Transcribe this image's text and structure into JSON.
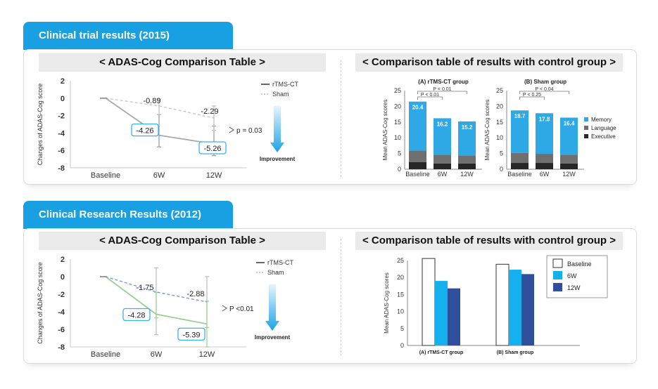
{
  "sections": [
    {
      "tab_title": "Clinical trial results (2015)",
      "left_header": "< ADAS-Cog Comparison Table >",
      "right_header": "< Comparison table of results with control group >"
    },
    {
      "tab_title": "Clinical Research Results (2012)",
      "left_header": "< ADAS-Cog Comparison Table >",
      "right_header": "< Comparison table of results with control group >"
    }
  ],
  "colors": {
    "accent": "#18a0e3",
    "memory": "#2fa8e6",
    "language": "#6f6f6f",
    "executive": "#262626",
    "rtms_line_2015": "#a9a9a9",
    "rtms_line_2012": "#9ccf91",
    "sham_line_2012": "#7b97cc",
    "baseline_bar": "#ffffff",
    "w6_bar": "#15b1ee",
    "w12_bar": "#2f4f9d"
  },
  "chart_data": [
    {
      "type": "line",
      "ylabel": "Changes of ADAS-Cog score",
      "categories": [
        "Baseline",
        "6W",
        "12W"
      ],
      "ylim": [
        -8,
        2
      ],
      "yticks": [
        "2",
        "0",
        "-2",
        "-4",
        "-6",
        "-8"
      ],
      "series": [
        {
          "name": "rTMS-CT",
          "values": [
            0,
            -4.26,
            -5.26
          ],
          "labels": [
            "",
            "-4.26",
            "-5.26"
          ]
        },
        {
          "name": "Sham",
          "values": [
            0,
            -0.89,
            -2.29
          ],
          "labels": [
            "",
            "-0.89",
            "-2.29"
          ]
        }
      ],
      "legend": [
        "rTMS-CT",
        "Sham"
      ],
      "p_value": "p = 0.03",
      "arrow_label": "Improvement"
    },
    {
      "type": "bar",
      "subtitle": "(A) rTMS-CT group",
      "ylabel": "Mean ADAS-Cog scores",
      "categories": [
        "Baseline",
        "6W",
        "12W"
      ],
      "ylim": [
        0,
        25
      ],
      "yticks": [
        "25",
        "20",
        "15",
        "10",
        "5",
        "0"
      ],
      "totals": [
        "20.4",
        "16.2",
        "15.2"
      ],
      "series": [
        {
          "name": "Executive",
          "values": [
            2.3,
            1.8,
            1.8
          ]
        },
        {
          "name": "Language",
          "values": [
            3.6,
            2.8,
            2.6
          ]
        },
        {
          "name": "Memory",
          "values": [
            15.6,
            11.6,
            10.8
          ]
        }
      ],
      "p_brackets": [
        "P < 0.01",
        "P < 0.01"
      ]
    },
    {
      "type": "bar",
      "subtitle": "(B) Sham group",
      "ylabel": "Mean ADAS-Cog scores",
      "categories": [
        "Baseline",
        "6W",
        "12W"
      ],
      "ylim": [
        0,
        25
      ],
      "yticks": [
        "25",
        "20",
        "15",
        "10",
        "5",
        "0"
      ],
      "totals": [
        "18.7",
        "17.8",
        "16.4"
      ],
      "series": [
        {
          "name": "Executive",
          "values": [
            2.0,
            2.0,
            1.8
          ]
        },
        {
          "name": "Language",
          "values": [
            3.2,
            2.9,
            2.8
          ]
        },
        {
          "name": "Memory",
          "values": [
            13.5,
            12.9,
            11.8
          ]
        }
      ],
      "p_brackets": [
        "P < 0.04",
        "P < 0.25"
      ],
      "legend": [
        "Memory",
        "Language",
        "Executive"
      ]
    },
    {
      "type": "line",
      "ylabel": "Changes of ADAS-Cog score",
      "categories": [
        "Baseline",
        "6W",
        "12W"
      ],
      "ylim": [
        -8,
        2
      ],
      "yticks": [
        "2",
        "0",
        "-2",
        "-4",
        "-6",
        "-8"
      ],
      "series": [
        {
          "name": "rTMS-CT",
          "values": [
            0,
            -4.28,
            -5.39
          ],
          "labels": [
            "",
            "-4.28",
            "-5.39"
          ]
        },
        {
          "name": "Sham",
          "values": [
            0,
            -1.75,
            -2.88
          ],
          "labels": [
            "",
            "-1.75",
            "-2.88"
          ]
        }
      ],
      "legend": [
        "rTMS-CT",
        "Sham"
      ],
      "p_value": "P <0.01",
      "arrow_label": "Improvement"
    },
    {
      "type": "bar",
      "ylabel": "Mean ADAS-Cog scores",
      "categories": [
        "(A) rTMS-CT group",
        "(B) Sham group"
      ],
      "ylim": [
        0,
        25
      ],
      "yticks": [
        "25",
        "20",
        "15",
        "10",
        "5",
        "0"
      ],
      "series": [
        {
          "name": "Baseline",
          "values": [
            25.6,
            23.9
          ]
        },
        {
          "name": "6W",
          "values": [
            19.0,
            22.3
          ]
        },
        {
          "name": "12W",
          "values": [
            16.8,
            21.0
          ]
        }
      ],
      "legend": [
        "Baseline",
        "6W",
        "12W"
      ]
    }
  ]
}
